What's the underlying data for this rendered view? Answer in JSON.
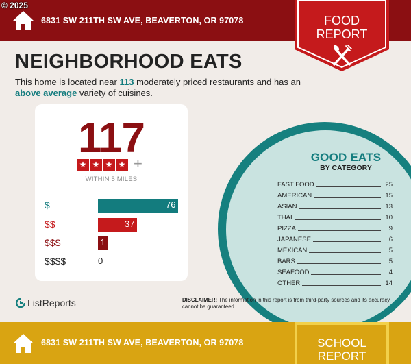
{
  "copyright": "© 2025",
  "header": {
    "address": "6831 SW 211TH SW AVE, BEAVERTON, OR 97078"
  },
  "food_badge": {
    "line1": "FOOD",
    "line2": "REPORT"
  },
  "heading": "NEIGHBORHOOD EATS",
  "intro": {
    "p1": "This home is located near ",
    "count": "113",
    "p2": " moderately priced restaurants and has an ",
    "emph": "above average",
    "p3": " variety of cuisines."
  },
  "card": {
    "big_number": "117",
    "rating": {
      "filled_stars": 4,
      "max": 5,
      "plus": "+"
    },
    "within": "WITHIN 5 MILES",
    "prices": [
      {
        "label": "$",
        "value": 76,
        "color": "#137c7e"
      },
      {
        "label": "$$",
        "value": 37,
        "color": "#c51a1c"
      },
      {
        "label": "$$$",
        "value": 1,
        "color": "#8b0f12"
      },
      {
        "label": "$$$$",
        "value": 0,
        "color": "#222222"
      }
    ]
  },
  "good_eats": {
    "title": "GOOD EATS",
    "subtitle": "BY CATEGORY",
    "categories": [
      {
        "name": "FAST FOOD",
        "value": "25"
      },
      {
        "name": "AMERICAN",
        "value": "15"
      },
      {
        "name": "ASIAN",
        "value": "13"
      },
      {
        "name": "THAI",
        "value": "10"
      },
      {
        "name": "PIZZA",
        "value": "9"
      },
      {
        "name": "JAPANESE",
        "value": "6"
      },
      {
        "name": "MEXICAN",
        "value": "5"
      },
      {
        "name": "BARS",
        "value": "5"
      },
      {
        "name": "SEAFOOD",
        "value": "4"
      },
      {
        "name": "OTHER",
        "value": "14"
      }
    ]
  },
  "brand": "ListReports",
  "disclaimer": {
    "label": "DISCLAIMER:",
    "text": " The information in this report is from third-party sources and its accuracy cannot be guaranteed."
  },
  "footer": {
    "address": "6831 SW 211TH SW AVE, BEAVERTON, OR 97078"
  },
  "school_badge": {
    "line1": "SCHOOL",
    "line2": "REPORT"
  },
  "colors": {
    "maroon": "#8b0f12",
    "red": "#c51a1c",
    "teal": "#137c7e",
    "gold": "#d9a412"
  }
}
